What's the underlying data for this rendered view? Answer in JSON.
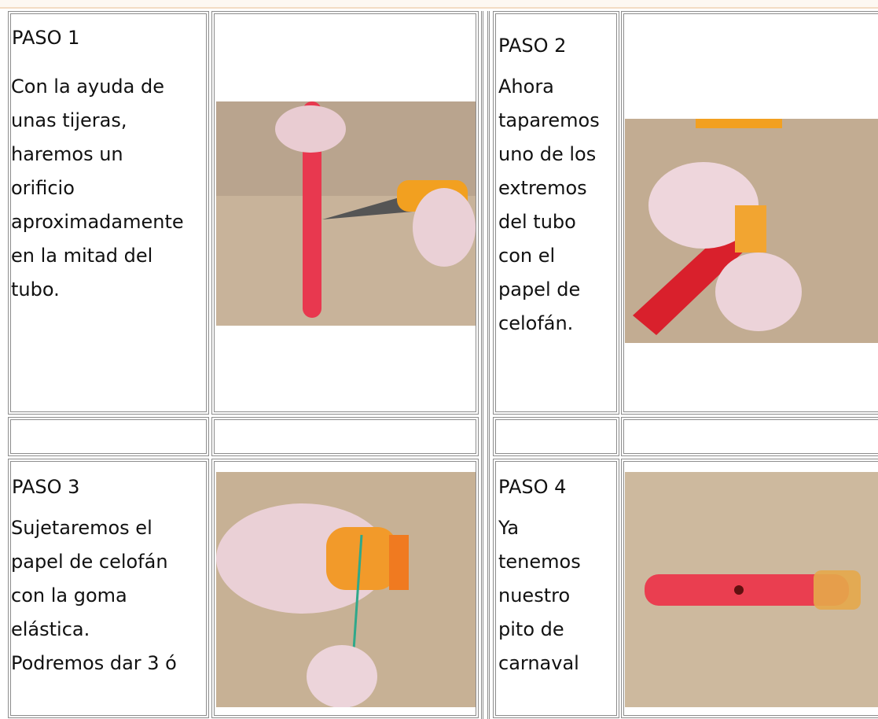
{
  "steps": [
    {
      "title": "PASO 1",
      "lines": [
        "Con la ayuda de",
        "unas tijeras,",
        "haremos un",
        "orificio",
        "aproximadamente",
        "en la mitad del",
        "tubo."
      ]
    },
    {
      "title": "PASO 2",
      "lines": [
        "Ahora",
        "taparemos",
        "uno de los",
        "extremos",
        "del tubo",
        "con el",
        "papel de",
        "celofán."
      ]
    },
    {
      "title": "PASO 3",
      "lines": [
        "Sujetaremos el",
        "papel de celofán",
        "con la goma",
        "elástica.",
        "Podremos dar 3 ó"
      ]
    },
    {
      "title": "PASO 4",
      "lines": [
        "Ya",
        "tenemos",
        "nuestro",
        "pito de",
        "carnaval"
      ]
    }
  ]
}
